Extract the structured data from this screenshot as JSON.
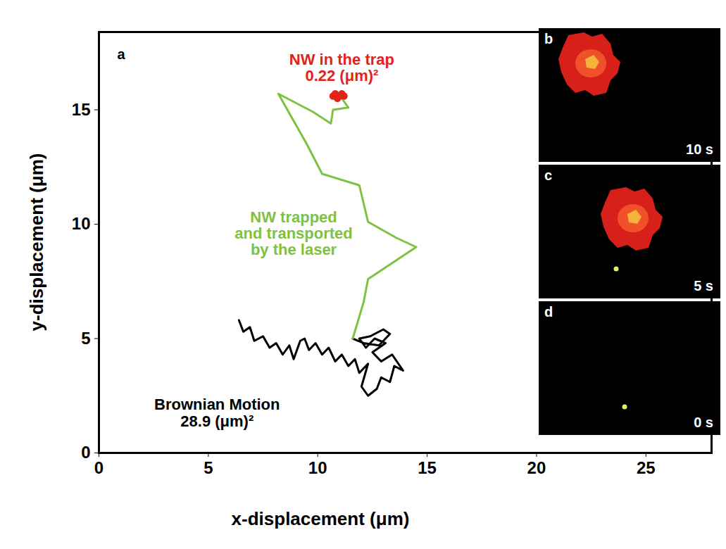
{
  "chart_data": {
    "type": "line",
    "panel_label": "a",
    "x_label": "x-displacement (μm)",
    "y_label": "y-displacement (μm)",
    "xlim": [
      0,
      28
    ],
    "ylim": [
      0,
      18.4
    ],
    "xticks": [
      0,
      5,
      10,
      15,
      20,
      25
    ],
    "yticks": [
      0,
      5,
      10,
      15
    ],
    "grid": false,
    "series": [
      {
        "name": "Brownian Motion",
        "annotation": "28.9 (μm)²",
        "color": "#000000",
        "type": "line",
        "values": [
          [
            6.4,
            5.8
          ],
          [
            6.6,
            5.3
          ],
          [
            6.9,
            5.5
          ],
          [
            7.1,
            4.9
          ],
          [
            7.5,
            5.1
          ],
          [
            7.8,
            4.6
          ],
          [
            8.1,
            4.8
          ],
          [
            8.4,
            4.3
          ],
          [
            8.7,
            4.7
          ],
          [
            8.9,
            4.1
          ],
          [
            9.2,
            4.9
          ],
          [
            9.4,
            5.0
          ],
          [
            9.6,
            4.5
          ],
          [
            9.9,
            4.8
          ],
          [
            10.2,
            4.3
          ],
          [
            10.5,
            4.6
          ],
          [
            10.8,
            4.0
          ],
          [
            11.1,
            4.3
          ],
          [
            11.4,
            3.8
          ],
          [
            11.7,
            4.1
          ],
          [
            11.9,
            3.5
          ],
          [
            12.3,
            3.9
          ],
          [
            12.0,
            2.9
          ],
          [
            12.3,
            2.5
          ],
          [
            12.7,
            2.8
          ],
          [
            12.9,
            3.3
          ],
          [
            13.3,
            3.1
          ],
          [
            13.5,
            3.8
          ],
          [
            13.9,
            3.6
          ],
          [
            13.4,
            4.3
          ],
          [
            12.9,
            4.0
          ],
          [
            12.5,
            4.4
          ],
          [
            13.1,
            4.8
          ],
          [
            12.6,
            5.0
          ],
          [
            12.2,
            4.6
          ],
          [
            11.9,
            5.0
          ],
          [
            12.4,
            5.1
          ],
          [
            13.0,
            5.4
          ],
          [
            13.3,
            5.2
          ],
          [
            12.8,
            4.7
          ],
          [
            12.1,
            4.8
          ],
          [
            11.6,
            5.0
          ]
        ]
      },
      {
        "name": "NW trapped\nand transported\nby the laser",
        "color": "#7dc242",
        "type": "line",
        "values": [
          [
            11.6,
            5.0
          ],
          [
            12.1,
            6.6
          ],
          [
            12.3,
            7.6
          ],
          [
            14.5,
            9.0
          ],
          [
            13.6,
            9.4
          ],
          [
            12.3,
            10.1
          ],
          [
            11.9,
            11.7
          ],
          [
            10.2,
            12.2
          ],
          [
            9.5,
            13.5
          ],
          [
            8.2,
            15.7
          ],
          [
            9.8,
            14.9
          ],
          [
            10.6,
            14.4
          ],
          [
            10.7,
            15.0
          ],
          [
            11.4,
            15.1
          ],
          [
            11.1,
            15.5
          ]
        ]
      },
      {
        "name": "NW in the trap",
        "annotation": "0.22 (μm)²",
        "color": "#e2231a",
        "type": "scatter",
        "marker": "circle",
        "values": [
          [
            10.7,
            15.6
          ],
          [
            10.8,
            15.7
          ],
          [
            10.9,
            15.5
          ],
          [
            11.0,
            15.6
          ],
          [
            11.1,
            15.7
          ],
          [
            11.2,
            15.6
          ]
        ]
      }
    ]
  },
  "image_panels": [
    {
      "label": "b",
      "time": "10 s"
    },
    {
      "label": "c",
      "time": "5 s"
    },
    {
      "label": "d",
      "time": "0 s"
    }
  ]
}
